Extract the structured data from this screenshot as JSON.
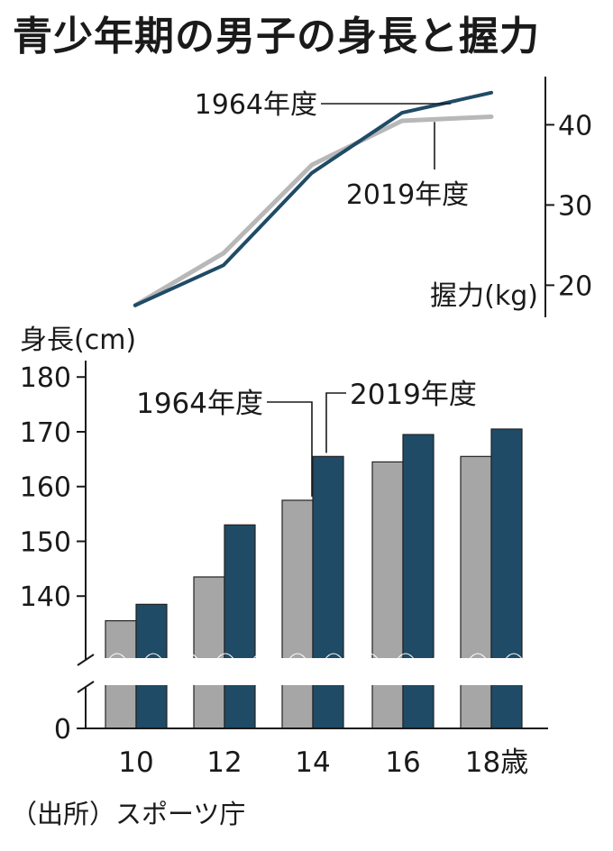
{
  "title": "青少年期の男子の身長と握力",
  "source": "（出所）スポーツ庁",
  "colors": {
    "navy": "#1f4b66",
    "gray": "#a6a6a6",
    "grayLine": "#b8b8b8",
    "axis": "#1a1a1a"
  },
  "chart_data": [
    {
      "type": "line",
      "categories": [
        "10",
        "12",
        "14",
        "16",
        "18"
      ],
      "ylabel": "握力(kg)",
      "yticks": [
        20,
        30,
        40
      ],
      "ylim": [
        16,
        46
      ],
      "series": [
        {
          "name": "1964年度",
          "values": [
            17.5,
            22.5,
            34,
            41.5,
            44
          ]
        },
        {
          "name": "2019年度",
          "values": [
            17.5,
            24,
            35,
            40.5,
            41
          ]
        }
      ]
    },
    {
      "type": "bar",
      "categories": [
        "10",
        "12",
        "14",
        "16",
        "18"
      ],
      "category_labels": [
        "10",
        "12",
        "14",
        "16",
        "18歳"
      ],
      "ylabel": "身長(cm)",
      "yticks": [
        0,
        140,
        150,
        160,
        170,
        180
      ],
      "ylim": [
        130,
        183
      ],
      "axis_break": true,
      "series": [
        {
          "name": "1964年度",
          "values": [
            135.5,
            143.5,
            157.5,
            164.5,
            165.5
          ]
        },
        {
          "name": "2019年度",
          "values": [
            138.5,
            153,
            165.5,
            169.5,
            170.5
          ]
        }
      ]
    }
  ]
}
